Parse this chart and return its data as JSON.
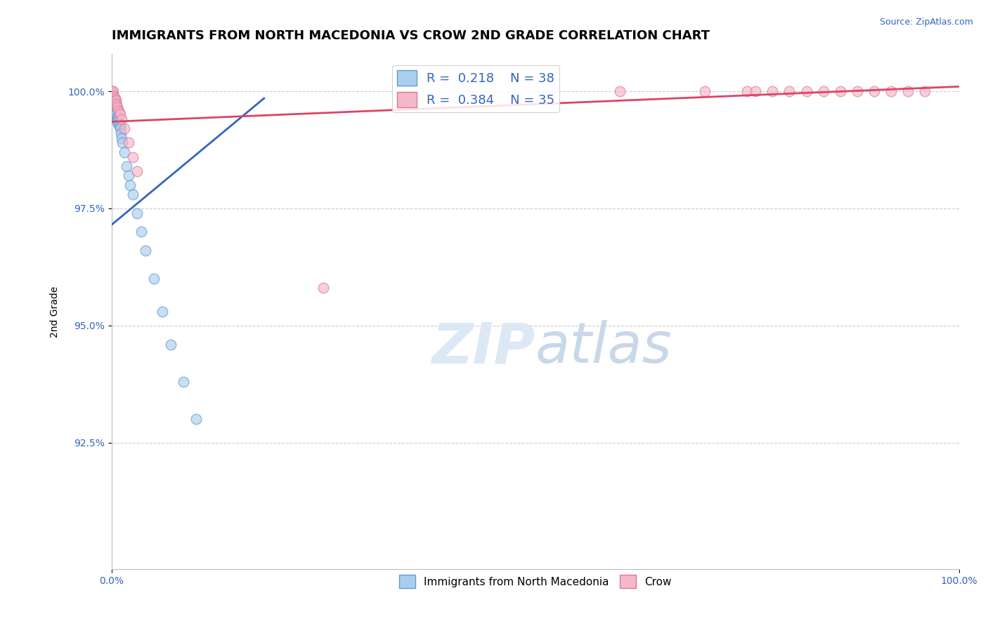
{
  "title": "IMMIGRANTS FROM NORTH MACEDONIA VS CROW 2ND GRADE CORRELATION CHART",
  "source_text": "Source: ZipAtlas.com",
  "ylabel": "2nd Grade",
  "xlim": [
    0,
    1.0
  ],
  "ylim": [
    0.898,
    1.008
  ],
  "yticks": [
    0.925,
    0.95,
    0.975,
    1.0
  ],
  "ytick_labels": [
    "92.5%",
    "95.0%",
    "97.5%",
    "100.0%"
  ],
  "xtick_labels": [
    "0.0%",
    "100.0%"
  ],
  "xticks": [
    0.0,
    1.0
  ],
  "r_blue": 0.218,
  "n_blue": 38,
  "r_pink": 0.384,
  "n_pink": 35,
  "blue_color": "#aacfee",
  "pink_color": "#f4b8c8",
  "blue_edge_color": "#6699cc",
  "pink_edge_color": "#dd7799",
  "blue_line_color": "#3366bb",
  "pink_line_color": "#dd4466",
  "watermark_color": "#dde8f5",
  "title_fontsize": 13,
  "label_fontsize": 10,
  "tick_fontsize": 10,
  "blue_scatter_x": [
    0.001,
    0.001,
    0.001,
    0.002,
    0.002,
    0.002,
    0.003,
    0.003,
    0.004,
    0.004,
    0.005,
    0.005,
    0.005,
    0.006,
    0.006,
    0.007,
    0.007,
    0.008,
    0.008,
    0.009,
    0.01,
    0.01,
    0.011,
    0.012,
    0.013,
    0.015,
    0.018,
    0.02,
    0.022,
    0.025,
    0.03,
    0.035,
    0.04,
    0.05,
    0.06,
    0.07,
    0.085,
    0.1
  ],
  "blue_scatter_y": [
    1.0,
    0.9995,
    0.999,
    0.9985,
    0.998,
    0.9975,
    0.9975,
    0.997,
    0.9965,
    0.996,
    0.9965,
    0.9955,
    0.995,
    0.9945,
    0.994,
    0.994,
    0.9935,
    0.9935,
    0.993,
    0.993,
    0.9925,
    0.992,
    0.991,
    0.99,
    0.989,
    0.987,
    0.984,
    0.982,
    0.98,
    0.978,
    0.974,
    0.97,
    0.966,
    0.96,
    0.953,
    0.946,
    0.938,
    0.93
  ],
  "pink_scatter_x": [
    0.001,
    0.001,
    0.002,
    0.002,
    0.003,
    0.003,
    0.004,
    0.004,
    0.005,
    0.005,
    0.006,
    0.007,
    0.008,
    0.009,
    0.01,
    0.012,
    0.015,
    0.02,
    0.025,
    0.03,
    0.25,
    0.6,
    0.7,
    0.75,
    0.76,
    0.78,
    0.8,
    0.82,
    0.84,
    0.86,
    0.88,
    0.9,
    0.92,
    0.94,
    0.96
  ],
  "pink_scatter_y": [
    1.0,
    0.9995,
    1.0,
    0.999,
    0.999,
    0.9985,
    0.9985,
    0.998,
    0.998,
    0.9975,
    0.997,
    0.9965,
    0.996,
    0.9955,
    0.995,
    0.994,
    0.992,
    0.989,
    0.986,
    0.983,
    0.958,
    1.0,
    1.0,
    1.0,
    1.0,
    1.0,
    1.0,
    1.0,
    1.0,
    1.0,
    1.0,
    1.0,
    1.0,
    1.0,
    1.0
  ],
  "blue_trend_x": [
    0.0,
    0.18
  ],
  "blue_trend_y": [
    0.9715,
    0.9985
  ],
  "pink_trend_x": [
    0.0,
    1.0
  ],
  "pink_trend_y": [
    0.9935,
    1.001
  ]
}
